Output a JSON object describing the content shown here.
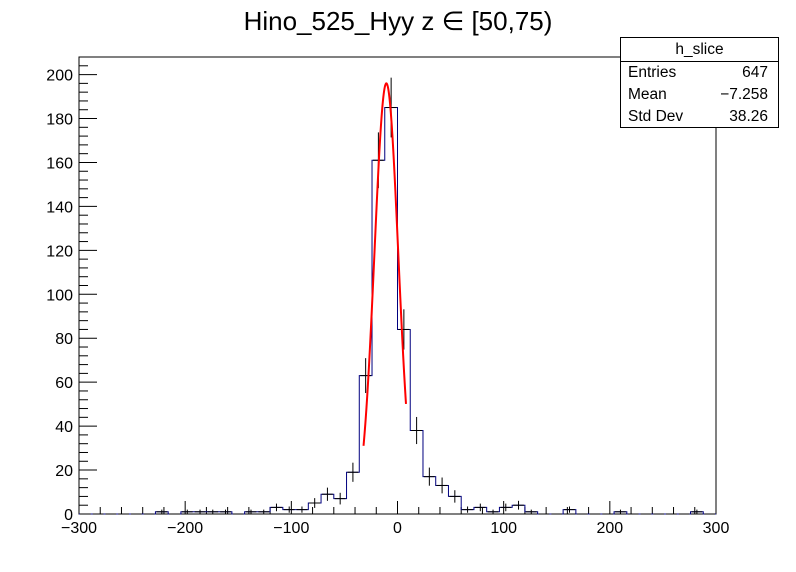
{
  "title": "Hino_525_Hyy z  ∈ [50,75)",
  "stats": {
    "name": "h_slice",
    "rows": [
      {
        "label": "Entries",
        "value": "647"
      },
      {
        "label": "Mean",
        "value": "−7.258"
      },
      {
        "label": "Std Dev",
        "value": "38.26"
      }
    ]
  },
  "chart_data": {
    "type": "histogram",
    "xlim": [
      -300,
      300
    ],
    "ylim": [
      0,
      208
    ],
    "x_ticks": [
      -300,
      -200,
      -100,
      0,
      100,
      200,
      300
    ],
    "x_tick_labels": [
      "−300",
      "−200",
      "−100",
      "0",
      "100",
      "200",
      "300"
    ],
    "y_ticks": [
      0,
      20,
      40,
      60,
      80,
      100,
      120,
      140,
      160,
      180,
      200
    ],
    "bin_width": 12,
    "bins_x_low": [
      -300,
      -288,
      -276,
      -264,
      -252,
      -240,
      -228,
      -216,
      -204,
      -192,
      -180,
      -168,
      -156,
      -144,
      -132,
      -120,
      -108,
      -96,
      -84,
      -72,
      -60,
      -48,
      -36,
      -24,
      -12,
      0,
      12,
      24,
      36,
      48,
      60,
      72,
      84,
      96,
      108,
      120,
      132,
      144,
      156,
      168,
      180,
      192,
      204,
      216,
      228,
      240,
      252,
      264,
      276,
      288
    ],
    "counts": [
      0,
      0,
      0,
      0,
      0,
      0,
      1,
      0,
      1,
      1,
      1,
      1,
      0,
      1,
      1,
      3,
      2,
      2,
      5,
      9,
      7,
      19,
      63,
      161,
      185,
      84,
      38,
      17,
      13,
      8,
      2,
      3,
      1,
      3,
      4,
      1,
      0,
      0,
      2,
      0,
      0,
      0,
      1,
      0,
      0,
      0,
      0,
      0,
      1,
      0
    ],
    "line_color": "#00007f",
    "fit": {
      "type": "gaussian",
      "amplitude": 196,
      "mean": -10.5,
      "sigma": 11.2,
      "range": [
        -32,
        8
      ],
      "color": "#ff0000"
    }
  }
}
